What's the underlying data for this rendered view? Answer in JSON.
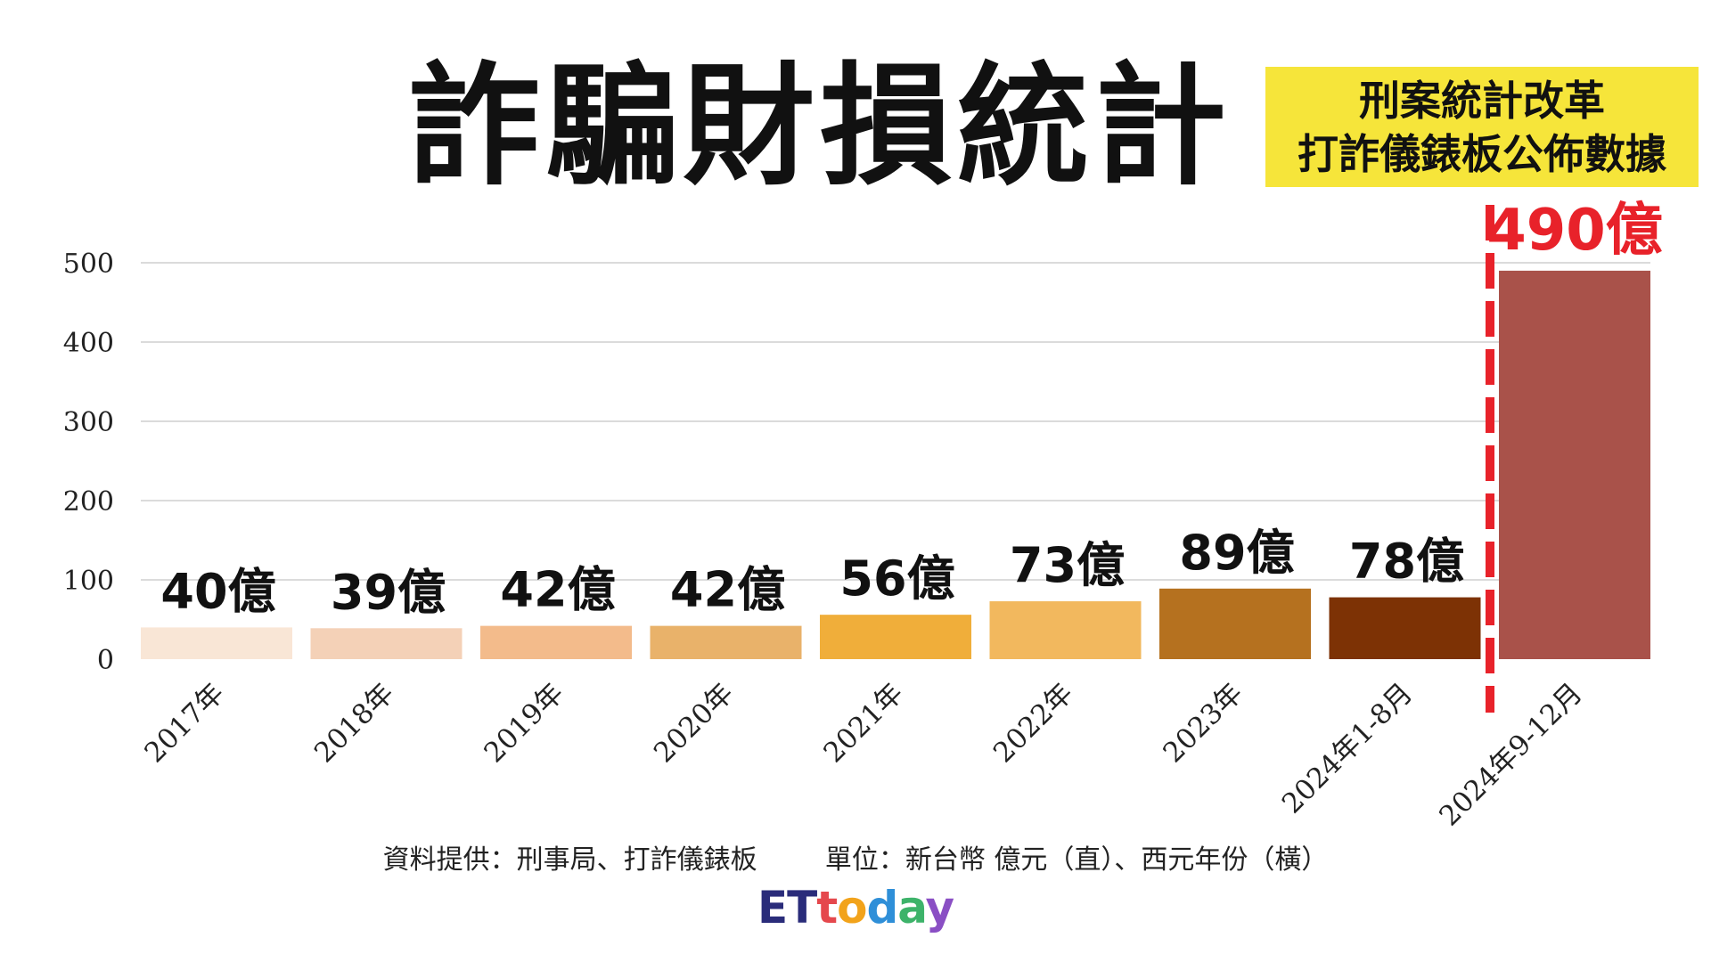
{
  "title": "詐騙財損統計",
  "badge": {
    "line1": "刑案統計改革",
    "line2": "打詐儀錶板公佈數據"
  },
  "footnote": {
    "source": "資料提供：刑事局、打詐儀錶板",
    "unit": "單位：新台幣 億元（直）、西元年份（橫）"
  },
  "logo": "ETtoday",
  "colors": {
    "bars": [
      "#f9e6d6",
      "#f4d1b7",
      "#f3bb8b",
      "#e9b26a",
      "#f0ae3a",
      "#f2b85e",
      "#b5711f",
      "#7d3205",
      "#a9524a"
    ],
    "accent": "#e8222a",
    "gridline": "#cfcfcf"
  },
  "chart_data": {
    "type": "bar",
    "categories": [
      "2017年",
      "2018年",
      "2019年",
      "2020年",
      "2021年",
      "2022年",
      "2023年",
      "2024年1-8月",
      "2024年9-12月"
    ],
    "values": [
      40,
      39,
      42,
      42,
      56,
      73,
      89,
      78,
      490
    ],
    "data_labels": [
      "40億",
      "39億",
      "42億",
      "42億",
      "56億",
      "73億",
      "89億",
      "78億",
      "490億"
    ],
    "yticks": [
      "0",
      "100",
      "200",
      "300",
      "400",
      "500"
    ],
    "ylim": [
      0,
      500
    ],
    "grid": true,
    "legend": "none",
    "annotation": "red dashed divider before 2024年9-12月"
  }
}
